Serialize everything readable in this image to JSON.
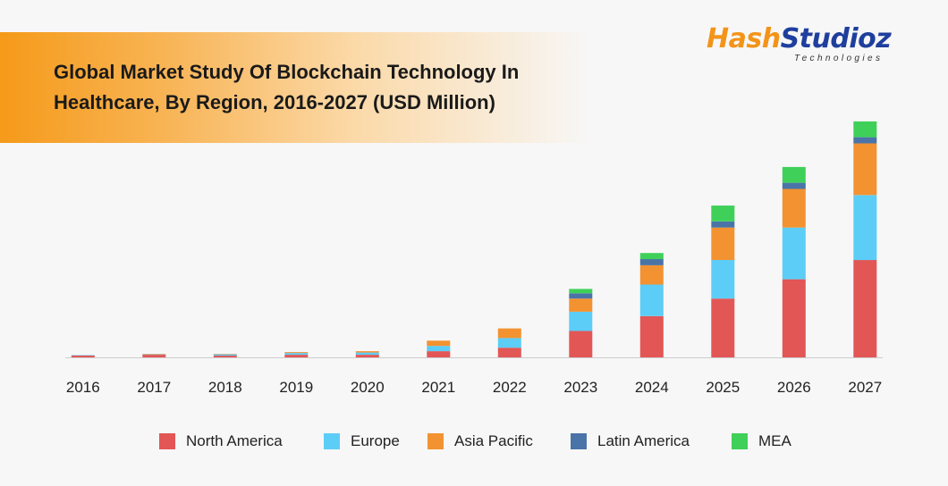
{
  "header": {
    "title_line1": "Global Market Study Of Blockchain Technology In",
    "title_line2": "Healthcare, By Region, 2016-2027 (USD Million)"
  },
  "logo": {
    "word_hash": "Hash",
    "word_studioz": "Studioz",
    "subtitle": "Technologies"
  },
  "colors": {
    "north_america": "#e35656",
    "europe": "#5ccdf7",
    "asia_pacific": "#f39230",
    "latin_america": "#4a74a8",
    "mea": "#3fd05a",
    "axis": "#cccccc"
  },
  "chart_data": {
    "type": "bar",
    "stacked": true,
    "title": "Global Market Study Of Blockchain Technology In Healthcare, By Region, 2016-2027 (USD Million)",
    "categories": [
      "2016",
      "2017",
      "2018",
      "2019",
      "2020",
      "2021",
      "2022",
      "2023",
      "2024",
      "2025",
      "2026",
      "2027"
    ],
    "ylim": [
      0,
      275
    ],
    "grid": false,
    "legend_position": "bottom",
    "series": [
      {
        "name": "North America",
        "color": "#e35656",
        "values": [
          2,
          3,
          2,
          3,
          3,
          7,
          11,
          30,
          47,
          67,
          89,
          111
        ]
      },
      {
        "name": "Europe",
        "color": "#5ccdf7",
        "values": [
          0.5,
          0.5,
          1.5,
          2,
          2.5,
          6,
          11,
          22,
          36,
          44,
          59,
          74
        ]
      },
      {
        "name": "Asia Pacific",
        "color": "#f39230",
        "values": [
          0,
          0.5,
          0.5,
          1,
          1.5,
          6,
          11,
          15,
          22,
          37,
          44,
          59
        ]
      },
      {
        "name": "Latin America",
        "color": "#4a74a8",
        "values": [
          0,
          0,
          0,
          0,
          0,
          0,
          0,
          6,
          7,
          7,
          7,
          7
        ]
      },
      {
        "name": "MEA",
        "color": "#3fd05a",
        "values": [
          0,
          0,
          0,
          0,
          0,
          0,
          0,
          5,
          7,
          18,
          18,
          18
        ]
      }
    ]
  },
  "legend": [
    {
      "label": "North America",
      "color": "#e35656"
    },
    {
      "label": "Europe",
      "color": "#5ccdf7"
    },
    {
      "label": "Asia Pacific",
      "color": "#f39230"
    },
    {
      "label": "Latin America",
      "color": "#4a74a8"
    },
    {
      "label": "MEA",
      "color": "#3fd05a"
    }
  ]
}
